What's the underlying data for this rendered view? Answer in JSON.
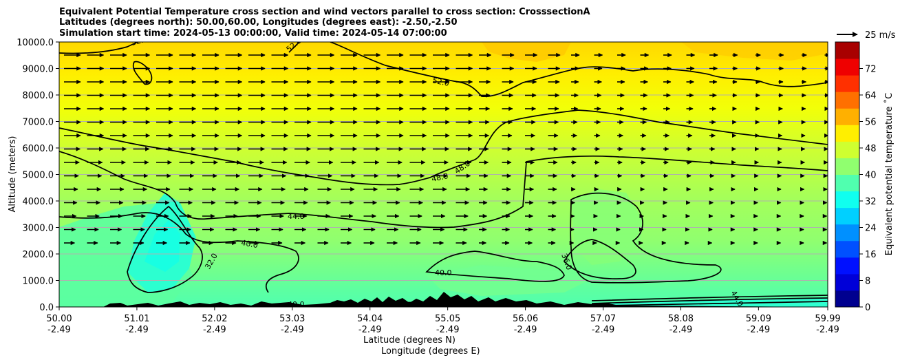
{
  "chart_data": {
    "type": "heatmap",
    "title": [
      "Equivalent Potential Temperature cross section and wind vectors parallel to cross section: CrosssectionA",
      "Latitudes (degrees north): 50.00,60.00, Longitudes (degrees east): -2.50,-2.50",
      "Simulation start time: 2024-05-13 00:00:00, Valid time: 2024-05-14 07:00:00"
    ],
    "xlabel_lat": "Latitude (degrees N)",
    "xlabel_lon": "Longitude (degrees E)",
    "ylabel": "Altitude (meters)",
    "x_ticks": [
      {
        "lat": "50.00",
        "lon": "-2.49"
      },
      {
        "lat": "51.01",
        "lon": "-2.49"
      },
      {
        "lat": "52.02",
        "lon": "-2.49"
      },
      {
        "lat": "53.03",
        "lon": "-2.49"
      },
      {
        "lat": "54.04",
        "lon": "-2.49"
      },
      {
        "lat": "55.05",
        "lon": "-2.49"
      },
      {
        "lat": "56.06",
        "lon": "-2.49"
      },
      {
        "lat": "57.07",
        "lon": "-2.49"
      },
      {
        "lat": "58.08",
        "lon": "-2.49"
      },
      {
        "lat": "59.09",
        "lon": "-2.49"
      },
      {
        "lat": "59.99",
        "lon": "-2.49"
      }
    ],
    "xlim": [
      50.0,
      59.99
    ],
    "y_ticks": [
      "0.0",
      "1000.0",
      "2000.0",
      "3000.0",
      "4000.0",
      "5000.0",
      "6000.0",
      "7000.0",
      "8000.0",
      "9000.0",
      "10000.0"
    ],
    "ylim": [
      0,
      10000
    ],
    "grid": "horizontal",
    "colorbar": {
      "label": "Equivalent potential temperature  ˚C",
      "ticks": [
        "0",
        "8",
        "16",
        "24",
        "32",
        "40",
        "48",
        "56",
        "64",
        "72"
      ],
      "range": [
        0,
        80
      ],
      "colors": [
        "#00008f",
        "#0000d8",
        "#0010ff",
        "#0050ff",
        "#0090ff",
        "#00d0ff",
        "#10ffef",
        "#50ffaf",
        "#90ff6f",
        "#cfff30",
        "#ffef00",
        "#ffb000",
        "#ff7000",
        "#ff3000",
        "#ef0000",
        "#a80000"
      ]
    },
    "wind_key_label": "25 m/s",
    "contour_labels": [
      "52.0",
      "52.0",
      "52.0",
      "48.0",
      "48.0",
      "44.0",
      "44.0",
      "40.0",
      "40.0",
      "40.0",
      "36.0",
      "32.0"
    ],
    "fill_bands": [
      {
        "from": 0,
        "to": 600,
        "value": 34
      },
      {
        "from": 600,
        "to": 3500,
        "value": 40
      },
      {
        "from": 3500,
        "to": 6000,
        "value": 44
      },
      {
        "from": 6000,
        "to": 8000,
        "value": 48
      },
      {
        "from": 8000,
        "to": 10000,
        "value": 52
      }
    ]
  }
}
